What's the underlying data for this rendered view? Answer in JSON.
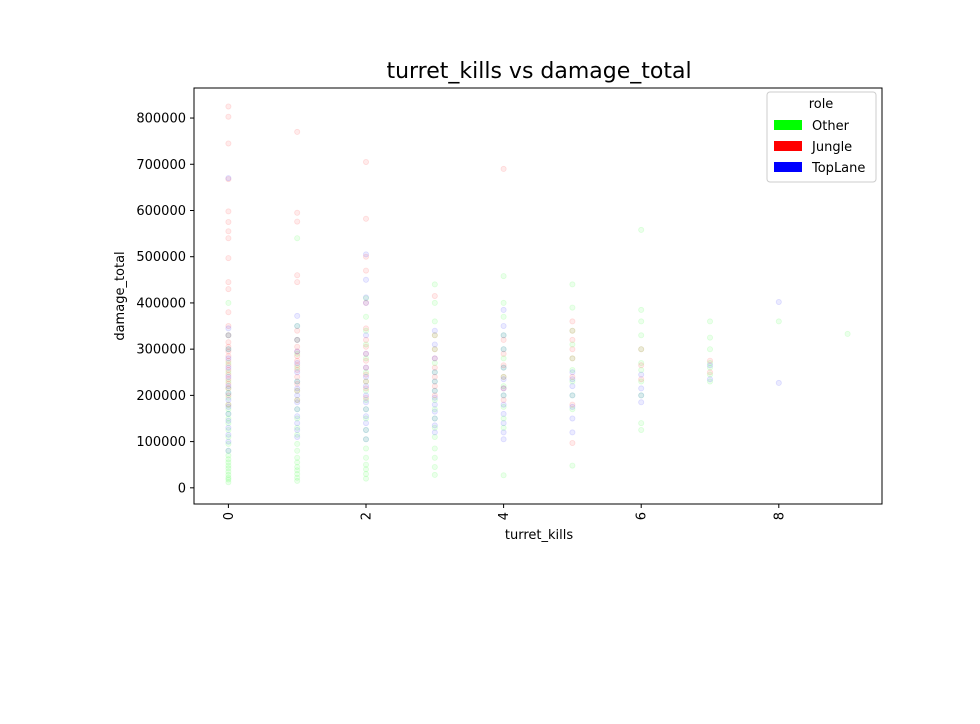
{
  "chart_data": {
    "type": "scatter",
    "title": "turret_kills vs damage_total",
    "xlabel": "turret_kills",
    "ylabel": "damage_total",
    "xlim": [
      -0.5,
      9.5
    ],
    "ylim": [
      -35000,
      865000
    ],
    "x_ticks": [
      0,
      2,
      4,
      6,
      8
    ],
    "y_ticks": [
      0,
      100000,
      200000,
      300000,
      400000,
      500000,
      600000,
      700000,
      800000
    ],
    "grid": false,
    "legend": {
      "title": "role",
      "position": "top-right"
    },
    "point_opacity": 0.08,
    "series": [
      {
        "name": "Other",
        "color": "#00ff00",
        "points": [
          [
            0,
            12000
          ],
          [
            0,
            18000
          ],
          [
            0,
            22000
          ],
          [
            0,
            28000
          ],
          [
            0,
            35000
          ],
          [
            0,
            42000
          ],
          [
            0,
            48000
          ],
          [
            0,
            55000
          ],
          [
            0,
            62000
          ],
          [
            0,
            70000
          ],
          [
            0,
            80000
          ],
          [
            0,
            95000
          ],
          [
            0,
            110000
          ],
          [
            0,
            125000
          ],
          [
            0,
            140000
          ],
          [
            0,
            150000
          ],
          [
            0,
            160000
          ],
          [
            0,
            170000
          ],
          [
            0,
            180000
          ],
          [
            0,
            195000
          ],
          [
            0,
            205000
          ],
          [
            0,
            215000
          ],
          [
            0,
            230000
          ],
          [
            0,
            250000
          ],
          [
            0,
            270000
          ],
          [
            0,
            300000
          ],
          [
            0,
            330000
          ],
          [
            0,
            400000
          ],
          [
            1,
            15000
          ],
          [
            1,
            22000
          ],
          [
            1,
            30000
          ],
          [
            1,
            38000
          ],
          [
            1,
            45000
          ],
          [
            1,
            55000
          ],
          [
            1,
            65000
          ],
          [
            1,
            80000
          ],
          [
            1,
            95000
          ],
          [
            1,
            115000
          ],
          [
            1,
            130000
          ],
          [
            1,
            150000
          ],
          [
            1,
            170000
          ],
          [
            1,
            190000
          ],
          [
            1,
            210000
          ],
          [
            1,
            230000
          ],
          [
            1,
            260000
          ],
          [
            1,
            290000
          ],
          [
            1,
            320000
          ],
          [
            1,
            350000
          ],
          [
            1,
            540000
          ],
          [
            2,
            20000
          ],
          [
            2,
            30000
          ],
          [
            2,
            40000
          ],
          [
            2,
            50000
          ],
          [
            2,
            65000
          ],
          [
            2,
            85000
          ],
          [
            2,
            105000
          ],
          [
            2,
            125000
          ],
          [
            2,
            150000
          ],
          [
            2,
            170000
          ],
          [
            2,
            190000
          ],
          [
            2,
            210000
          ],
          [
            2,
            230000
          ],
          [
            2,
            250000
          ],
          [
            2,
            280000
          ],
          [
            2,
            310000
          ],
          [
            2,
            340000
          ],
          [
            2,
            370000
          ],
          [
            2,
            410000
          ],
          [
            3,
            28000
          ],
          [
            3,
            45000
          ],
          [
            3,
            65000
          ],
          [
            3,
            85000
          ],
          [
            3,
            110000
          ],
          [
            3,
            130000
          ],
          [
            3,
            150000
          ],
          [
            3,
            170000
          ],
          [
            3,
            190000
          ],
          [
            3,
            210000
          ],
          [
            3,
            230000
          ],
          [
            3,
            250000
          ],
          [
            3,
            270000
          ],
          [
            3,
            300000
          ],
          [
            3,
            330000
          ],
          [
            3,
            360000
          ],
          [
            3,
            400000
          ],
          [
            3,
            440000
          ],
          [
            4,
            27000
          ],
          [
            4,
            130000
          ],
          [
            4,
            150000
          ],
          [
            4,
            175000
          ],
          [
            4,
            200000
          ],
          [
            4,
            220000
          ],
          [
            4,
            240000
          ],
          [
            4,
            260000
          ],
          [
            4,
            280000
          ],
          [
            4,
            300000
          ],
          [
            4,
            330000
          ],
          [
            4,
            370000
          ],
          [
            4,
            400000
          ],
          [
            4,
            458000
          ],
          [
            5,
            48000
          ],
          [
            5,
            170000
          ],
          [
            5,
            200000
          ],
          [
            5,
            230000
          ],
          [
            5,
            255000
          ],
          [
            5,
            280000
          ],
          [
            5,
            310000
          ],
          [
            5,
            340000
          ],
          [
            5,
            390000
          ],
          [
            5,
            440000
          ],
          [
            6,
            125000
          ],
          [
            6,
            140000
          ],
          [
            6,
            200000
          ],
          [
            6,
            230000
          ],
          [
            6,
            255000
          ],
          [
            6,
            270000
          ],
          [
            6,
            300000
          ],
          [
            6,
            330000
          ],
          [
            6,
            360000
          ],
          [
            6,
            385000
          ],
          [
            6,
            558000
          ],
          [
            7,
            230000
          ],
          [
            7,
            245000
          ],
          [
            7,
            260000
          ],
          [
            7,
            270000
          ],
          [
            7,
            300000
          ],
          [
            7,
            325000
          ],
          [
            7,
            360000
          ],
          [
            8,
            360000
          ],
          [
            9,
            333000
          ]
        ]
      },
      {
        "name": "Jungle",
        "color": "#ff0000",
        "points": [
          [
            0,
            180000
          ],
          [
            0,
            200000
          ],
          [
            0,
            215000
          ],
          [
            0,
            225000
          ],
          [
            0,
            235000
          ],
          [
            0,
            245000
          ],
          [
            0,
            255000
          ],
          [
            0,
            265000
          ],
          [
            0,
            275000
          ],
          [
            0,
            285000
          ],
          [
            0,
            295000
          ],
          [
            0,
            305000
          ],
          [
            0,
            315000
          ],
          [
            0,
            330000
          ],
          [
            0,
            350000
          ],
          [
            0,
            380000
          ],
          [
            0,
            430000
          ],
          [
            0,
            445000
          ],
          [
            0,
            497000
          ],
          [
            0,
            540000
          ],
          [
            0,
            555000
          ],
          [
            0,
            575000
          ],
          [
            0,
            598000
          ],
          [
            0,
            668000
          ],
          [
            0,
            745000
          ],
          [
            0,
            803000
          ],
          [
            0,
            825000
          ],
          [
            1,
            190000
          ],
          [
            1,
            210000
          ],
          [
            1,
            225000
          ],
          [
            1,
            240000
          ],
          [
            1,
            255000
          ],
          [
            1,
            265000
          ],
          [
            1,
            275000
          ],
          [
            1,
            285000
          ],
          [
            1,
            295000
          ],
          [
            1,
            305000
          ],
          [
            1,
            320000
          ],
          [
            1,
            340000
          ],
          [
            1,
            445000
          ],
          [
            1,
            460000
          ],
          [
            1,
            576000
          ],
          [
            1,
            595000
          ],
          [
            1,
            770000
          ],
          [
            2,
            195000
          ],
          [
            2,
            215000
          ],
          [
            2,
            230000
          ],
          [
            2,
            245000
          ],
          [
            2,
            260000
          ],
          [
            2,
            275000
          ],
          [
            2,
            290000
          ],
          [
            2,
            305000
          ],
          [
            2,
            320000
          ],
          [
            2,
            345000
          ],
          [
            2,
            400000
          ],
          [
            2,
            470000
          ],
          [
            2,
            500000
          ],
          [
            2,
            582000
          ],
          [
            2,
            705000
          ],
          [
            3,
            200000
          ],
          [
            3,
            220000
          ],
          [
            3,
            240000
          ],
          [
            3,
            260000
          ],
          [
            3,
            280000
          ],
          [
            3,
            300000
          ],
          [
            3,
            330000
          ],
          [
            3,
            415000
          ],
          [
            4,
            190000
          ],
          [
            4,
            215000
          ],
          [
            4,
            240000
          ],
          [
            4,
            265000
          ],
          [
            4,
            290000
          ],
          [
            4,
            320000
          ],
          [
            4,
            690000
          ],
          [
            5,
            97000
          ],
          [
            5,
            180000
          ],
          [
            5,
            240000
          ],
          [
            5,
            280000
          ],
          [
            5,
            300000
          ],
          [
            5,
            320000
          ],
          [
            5,
            340000
          ],
          [
            5,
            360000
          ],
          [
            6,
            235000
          ],
          [
            6,
            265000
          ],
          [
            6,
            300000
          ],
          [
            7,
            250000
          ],
          [
            7,
            275000
          ]
        ]
      },
      {
        "name": "TopLane",
        "color": "#0000ff",
        "points": [
          [
            0,
            80000
          ],
          [
            0,
            100000
          ],
          [
            0,
            115000
          ],
          [
            0,
            130000
          ],
          [
            0,
            145000
          ],
          [
            0,
            160000
          ],
          [
            0,
            175000
          ],
          [
            0,
            190000
          ],
          [
            0,
            205000
          ],
          [
            0,
            220000
          ],
          [
            0,
            240000
          ],
          [
            0,
            260000
          ],
          [
            0,
            280000
          ],
          [
            0,
            300000
          ],
          [
            0,
            330000
          ],
          [
            0,
            345000
          ],
          [
            0,
            670000
          ],
          [
            1,
            110000
          ],
          [
            1,
            125000
          ],
          [
            1,
            140000
          ],
          [
            1,
            155000
          ],
          [
            1,
            170000
          ],
          [
            1,
            185000
          ],
          [
            1,
            200000
          ],
          [
            1,
            215000
          ],
          [
            1,
            230000
          ],
          [
            1,
            250000
          ],
          [
            1,
            270000
          ],
          [
            1,
            295000
          ],
          [
            1,
            320000
          ],
          [
            1,
            350000
          ],
          [
            1,
            372000
          ],
          [
            2,
            105000
          ],
          [
            2,
            125000
          ],
          [
            2,
            140000
          ],
          [
            2,
            155000
          ],
          [
            2,
            170000
          ],
          [
            2,
            185000
          ],
          [
            2,
            200000
          ],
          [
            2,
            220000
          ],
          [
            2,
            240000
          ],
          [
            2,
            260000
          ],
          [
            2,
            290000
          ],
          [
            2,
            330000
          ],
          [
            2,
            400000
          ],
          [
            2,
            412000
          ],
          [
            2,
            450000
          ],
          [
            2,
            505000
          ],
          [
            3,
            120000
          ],
          [
            3,
            135000
          ],
          [
            3,
            150000
          ],
          [
            3,
            165000
          ],
          [
            3,
            180000
          ],
          [
            3,
            195000
          ],
          [
            3,
            210000
          ],
          [
            3,
            230000
          ],
          [
            3,
            250000
          ],
          [
            3,
            280000
          ],
          [
            3,
            310000
          ],
          [
            3,
            340000
          ],
          [
            4,
            105000
          ],
          [
            4,
            120000
          ],
          [
            4,
            140000
          ],
          [
            4,
            160000
          ],
          [
            4,
            180000
          ],
          [
            4,
            200000
          ],
          [
            4,
            215000
          ],
          [
            4,
            235000
          ],
          [
            4,
            260000
          ],
          [
            4,
            300000
          ],
          [
            4,
            330000
          ],
          [
            4,
            350000
          ],
          [
            4,
            385000
          ],
          [
            5,
            120000
          ],
          [
            5,
            150000
          ],
          [
            5,
            175000
          ],
          [
            5,
            200000
          ],
          [
            5,
            220000
          ],
          [
            5,
            235000
          ],
          [
            5,
            250000
          ],
          [
            6,
            185000
          ],
          [
            6,
            200000
          ],
          [
            6,
            215000
          ],
          [
            6,
            245000
          ],
          [
            7,
            235000
          ],
          [
            7,
            265000
          ],
          [
            8,
            227000
          ],
          [
            8,
            402000
          ]
        ]
      }
    ]
  }
}
